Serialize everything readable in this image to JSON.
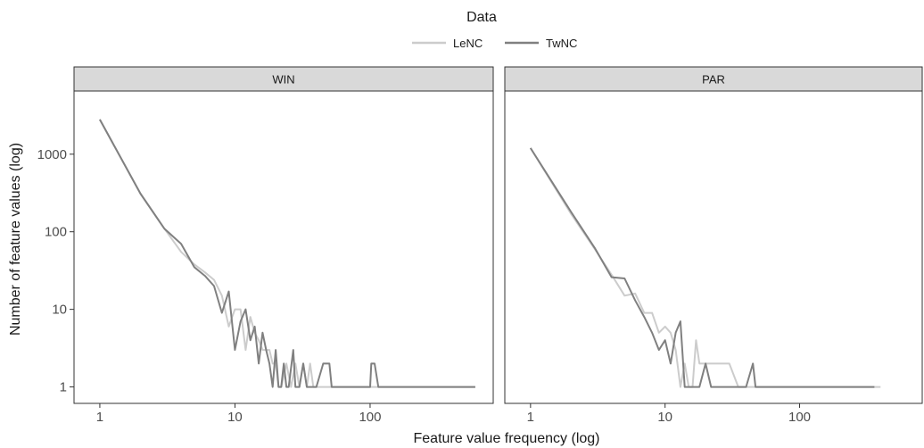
{
  "chart_data": {
    "type": "line",
    "xlabel": "Feature value frequency (log)",
    "ylabel": "Number of feature values (log)",
    "x_scale": "log10",
    "y_scale": "log10",
    "xlim": [
      0.75,
      700
    ],
    "ylim": [
      0.8,
      5000
    ],
    "x_ticks": [
      1,
      10,
      100
    ],
    "y_ticks": [
      1,
      10,
      100,
      1000
    ],
    "x_tick_labels": [
      "1",
      "10",
      "100"
    ],
    "y_tick_labels": [
      "1",
      "10",
      "100",
      "1000"
    ],
    "legend": {
      "title": "Data",
      "position": "top",
      "entries": [
        {
          "name": "LeNC",
          "color": "#cccccc"
        },
        {
          "name": "TwNC",
          "color": "#808080"
        }
      ]
    },
    "grid": false,
    "panels": [
      {
        "name": "WIN",
        "series": [
          {
            "name": "LeNC",
            "color": "#cccccc",
            "points": [
              [
                1,
                2800
              ],
              [
                2,
                310
              ],
              [
                3,
                110
              ],
              [
                4,
                55
              ],
              [
                5,
                38
              ],
              [
                6,
                30
              ],
              [
                7,
                24
              ],
              [
                8,
                15
              ],
              [
                9,
                6
              ],
              [
                10,
                10
              ],
              [
                11,
                10
              ],
              [
                12,
                3
              ],
              [
                13,
                8
              ],
              [
                14,
                5
              ],
              [
                15,
                4
              ],
              [
                16,
                3
              ],
              [
                17,
                3
              ],
              [
                18,
                3
              ],
              [
                19,
                2
              ],
              [
                20,
                2
              ],
              [
                21,
                1
              ],
              [
                22,
                1
              ],
              [
                24,
                2
              ],
              [
                26,
                1
              ],
              [
                28,
                2
              ],
              [
                30,
                1
              ],
              [
                32,
                2
              ],
              [
                34,
                1
              ],
              [
                36,
                2
              ],
              [
                38,
                1
              ],
              [
                600,
                1
              ]
            ]
          },
          {
            "name": "TwNC",
            "color": "#808080",
            "points": [
              [
                1,
                2800
              ],
              [
                2,
                310
              ],
              [
                3,
                110
              ],
              [
                4,
                70
              ],
              [
                5,
                35
              ],
              [
                6,
                27
              ],
              [
                7,
                20
              ],
              [
                8,
                9
              ],
              [
                9,
                17
              ],
              [
                10,
                3
              ],
              [
                11,
                7
              ],
              [
                12,
                10
              ],
              [
                13,
                4
              ],
              [
                14,
                6
              ],
              [
                15,
                2
              ],
              [
                16,
                5
              ],
              [
                17,
                3
              ],
              [
                18,
                2
              ],
              [
                19,
                1
              ],
              [
                20,
                3
              ],
              [
                21,
                1
              ],
              [
                22,
                1
              ],
              [
                23,
                2
              ],
              [
                24,
                1
              ],
              [
                25,
                1
              ],
              [
                27,
                3
              ],
              [
                28,
                1
              ],
              [
                30,
                1
              ],
              [
                32,
                2
              ],
              [
                34,
                1
              ],
              [
                36,
                1
              ],
              [
                38,
                1
              ],
              [
                40,
                1
              ],
              [
                45,
                2
              ],
              [
                50,
                2
              ],
              [
                52,
                1
              ],
              [
                100,
                1
              ],
              [
                102,
                2
              ],
              [
                108,
                2
              ],
              [
                115,
                1
              ],
              [
                600,
                1
              ]
            ]
          }
        ]
      },
      {
        "name": "PAR",
        "series": [
          {
            "name": "LeNC",
            "color": "#cccccc",
            "points": [
              [
                1,
                1200
              ],
              [
                2,
                170
              ],
              [
                3,
                60
              ],
              [
                4,
                28
              ],
              [
                5,
                15
              ],
              [
                6,
                16
              ],
              [
                7,
                9
              ],
              [
                8,
                9
              ],
              [
                9,
                5
              ],
              [
                10,
                6
              ],
              [
                11,
                5
              ],
              [
                12,
                3
              ],
              [
                13,
                1
              ],
              [
                14,
                2
              ],
              [
                15,
                1
              ],
              [
                16,
                1
              ],
              [
                17,
                4
              ],
              [
                18,
                2
              ],
              [
                20,
                2
              ],
              [
                22,
                2
              ],
              [
                25,
                2
              ],
              [
                30,
                2
              ],
              [
                35,
                1
              ],
              [
                400,
                1
              ]
            ]
          },
          {
            "name": "TwNC",
            "color": "#808080",
            "points": [
              [
                1,
                1200
              ],
              [
                2,
                180
              ],
              [
                3,
                62
              ],
              [
                4,
                26
              ],
              [
                5,
                25
              ],
              [
                6,
                13
              ],
              [
                7,
                8
              ],
              [
                8,
                5
              ],
              [
                9,
                3
              ],
              [
                10,
                4
              ],
              [
                11,
                2
              ],
              [
                12,
                5
              ],
              [
                13,
                7
              ],
              [
                14,
                1
              ],
              [
                15,
                1
              ],
              [
                16,
                1
              ],
              [
                18,
                1
              ],
              [
                20,
                2
              ],
              [
                22,
                1
              ],
              [
                25,
                1
              ],
              [
                30,
                1
              ],
              [
                40,
                1
              ],
              [
                45,
                2
              ],
              [
                47,
                1
              ],
              [
                360,
                1
              ]
            ]
          }
        ]
      }
    ]
  }
}
